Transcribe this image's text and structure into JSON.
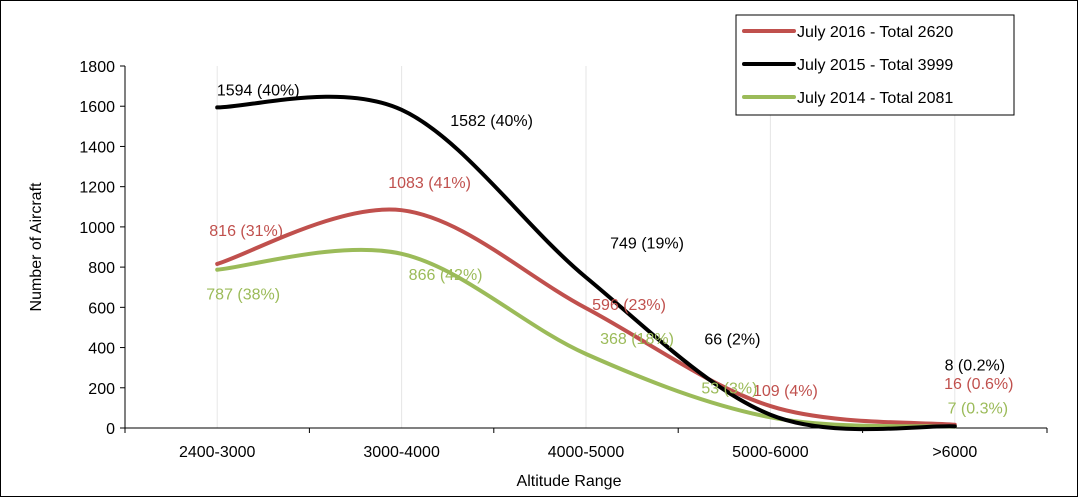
{
  "chart_data": {
    "type": "line",
    "title": "",
    "xlabel": "Altitude Range",
    "ylabel": "Number of Aircraft",
    "ylim": [
      0,
      1800
    ],
    "yticks": [
      0,
      200,
      400,
      600,
      800,
      1000,
      1200,
      1400,
      1600,
      1800
    ],
    "categories": [
      "2400-3000",
      "3000-4000",
      "4000-5000",
      "5000-6000",
      ">6000"
    ],
    "grid": "vertical gridlines at category positions",
    "legend_position": "top-right",
    "series": [
      {
        "name": "July 2016 - Total 2620",
        "color": "#c0504d",
        "values": [
          816,
          1083,
          596,
          109,
          16
        ],
        "labels": [
          "816 (31%)",
          "1083 (41%)",
          "596 (23%)",
          "109 (4%)",
          "16 (0.6%)"
        ]
      },
      {
        "name": "July 2015 - Total 3999",
        "color": "#000000",
        "values": [
          1594,
          1582,
          749,
          66,
          8
        ],
        "labels": [
          "1594 (40%)",
          "1582 (40%)",
          "749 (19%)",
          "66 (2%)",
          "8 (0.2%)"
        ]
      },
      {
        "name": "July 2014 - Total 2081",
        "color": "#9bbb59",
        "values": [
          787,
          866,
          368,
          53,
          7
        ],
        "labels": [
          "787 (38%)",
          "866 (42%)",
          "368 (18%)",
          "53 (3%)",
          "7 (0.3%)"
        ]
      }
    ]
  }
}
